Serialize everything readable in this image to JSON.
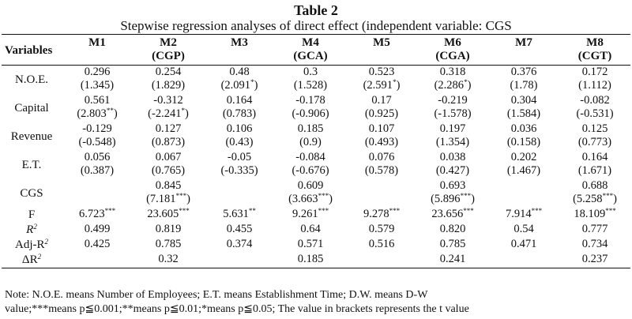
{
  "table": {
    "title": "Table 2",
    "subtitle": "Stepwise regression analyses of direct effect (independent variable: CGS",
    "columns": [
      {
        "label": "Variables",
        "sub": ""
      },
      {
        "label": "M1",
        "sub": ""
      },
      {
        "label": "M2",
        "sub": "(CGP)"
      },
      {
        "label": "M3",
        "sub": ""
      },
      {
        "label": "M4",
        "sub": "(GCA)"
      },
      {
        "label": "M5",
        "sub": ""
      },
      {
        "label": "M6",
        "sub": "(CGA)"
      },
      {
        "label": "M7",
        "sub": ""
      },
      {
        "label": "M8",
        "sub": "(CGT)"
      }
    ],
    "rows": [
      {
        "label": "N.O.E.",
        "coef": [
          "0.296",
          "0.254",
          "0.48",
          "0.3",
          "0.523",
          "0.318",
          "0.376",
          "0.172"
        ],
        "t": [
          "(1.345)",
          "(1.829)",
          "(2.091",
          "(1.528)",
          "(2.591",
          "(2.286",
          "(1.78)",
          "(1.112)"
        ],
        "tsup": [
          "",
          "",
          "*",
          "",
          "*",
          "*",
          "",
          ""
        ],
        "tclose": [
          "",
          "",
          ")",
          "",
          ")",
          ")",
          "",
          ""
        ]
      },
      {
        "label": "Capital",
        "coef": [
          "0.561",
          "-0.312",
          "0.164",
          "-0.178",
          "0.17",
          "-0.219",
          "0.304",
          "-0.082"
        ],
        "t": [
          "(2.803",
          "(-2.241",
          "(0.783)",
          "(-0.906)",
          "(0.925)",
          "(-1.578)",
          "(1.584)",
          "(-0.531)"
        ],
        "tsup": [
          "**",
          "*",
          "",
          "",
          "",
          "",
          "",
          ""
        ],
        "tclose": [
          ")",
          ")",
          "",
          "",
          "",
          "",
          "",
          ""
        ]
      },
      {
        "label": "Revenue",
        "coef": [
          "-0.129",
          "0.127",
          "0.106",
          "0.185",
          "0.107",
          "0.197",
          "0.036",
          "0.125"
        ],
        "t": [
          "(-0.548)",
          "(0.873)",
          "(0.43)",
          "(0.9)",
          "(0.493)",
          "(1.354)",
          "(0.158)",
          "(0.773)"
        ],
        "tsup": [
          "",
          "",
          "",
          "",
          "",
          "",
          "",
          ""
        ],
        "tclose": [
          "",
          "",
          "",
          "",
          "",
          "",
          "",
          ""
        ]
      },
      {
        "label": "E.T.",
        "coef": [
          "0.056",
          "0.067",
          "-0.05",
          "-0.084",
          "0.076",
          "0.038",
          "0.202",
          "0.164"
        ],
        "t": [
          "(0.387)",
          "(0.765)",
          "(-0.335)",
          "(-0.676)",
          "(0.578)",
          "(0.427)",
          "(1.467)",
          "(1.671)"
        ],
        "tsup": [
          "",
          "",
          "",
          "",
          "",
          "",
          "",
          ""
        ],
        "tclose": [
          "",
          "",
          "",
          "",
          "",
          "",
          "",
          ""
        ]
      },
      {
        "label": "CGS",
        "coef": [
          "",
          "0.845",
          "",
          "0.609",
          "",
          "0.693",
          "",
          "0.688"
        ],
        "t": [
          "",
          "(7.181",
          "",
          "(3.663",
          "",
          "(5.896",
          "",
          "(5.258"
        ],
        "tsup": [
          "",
          "***",
          "",
          "***",
          "",
          "***",
          "",
          "***"
        ],
        "tclose": [
          "",
          ")",
          "",
          ")",
          "",
          ")",
          "",
          ")"
        ]
      }
    ],
    "stats": [
      {
        "label": "F",
        "values": [
          "6.723",
          "23.605",
          "5.631",
          "9.261",
          "9.278",
          "23.656",
          "7.914",
          "18.109"
        ],
        "sups": [
          "***",
          "***",
          "**",
          "***",
          "***",
          "***",
          "***",
          "***"
        ]
      },
      {
        "label": "R",
        "labelsup": "2",
        "italic": true,
        "values": [
          "0.499",
          "0.819",
          "0.455",
          "0.64",
          "0.579",
          "0.820",
          "0.54",
          "0.777"
        ],
        "sups": [
          "",
          "",
          "",
          "",
          "",
          "",
          "",
          ""
        ]
      },
      {
        "label": "Adj-R",
        "labelsup": "2",
        "italic": false,
        "values": [
          "0.425",
          "0.785",
          "0.374",
          "0.571",
          "0.516",
          "0.785",
          "0.471",
          "0.734"
        ],
        "sups": [
          "",
          "",
          "",
          "",
          "",
          "",
          "",
          ""
        ]
      },
      {
        "label": "ΔR",
        "labelsup": "2",
        "italic": false,
        "values": [
          "",
          "0.32",
          "",
          "0.185",
          "",
          "0.241",
          "",
          "0.237"
        ],
        "sups": [
          "",
          "",
          "",
          "",
          "",
          "",
          "",
          ""
        ]
      }
    ]
  },
  "note": {
    "line1": "Note: N.O.E. means Number of Employees; E.T. means Establishment Time; D.W. means D-W",
    "line2": "value;***means p≦0.001;**means p≦0.01;*means p≦0.05; The value in brackets represents the t value"
  }
}
